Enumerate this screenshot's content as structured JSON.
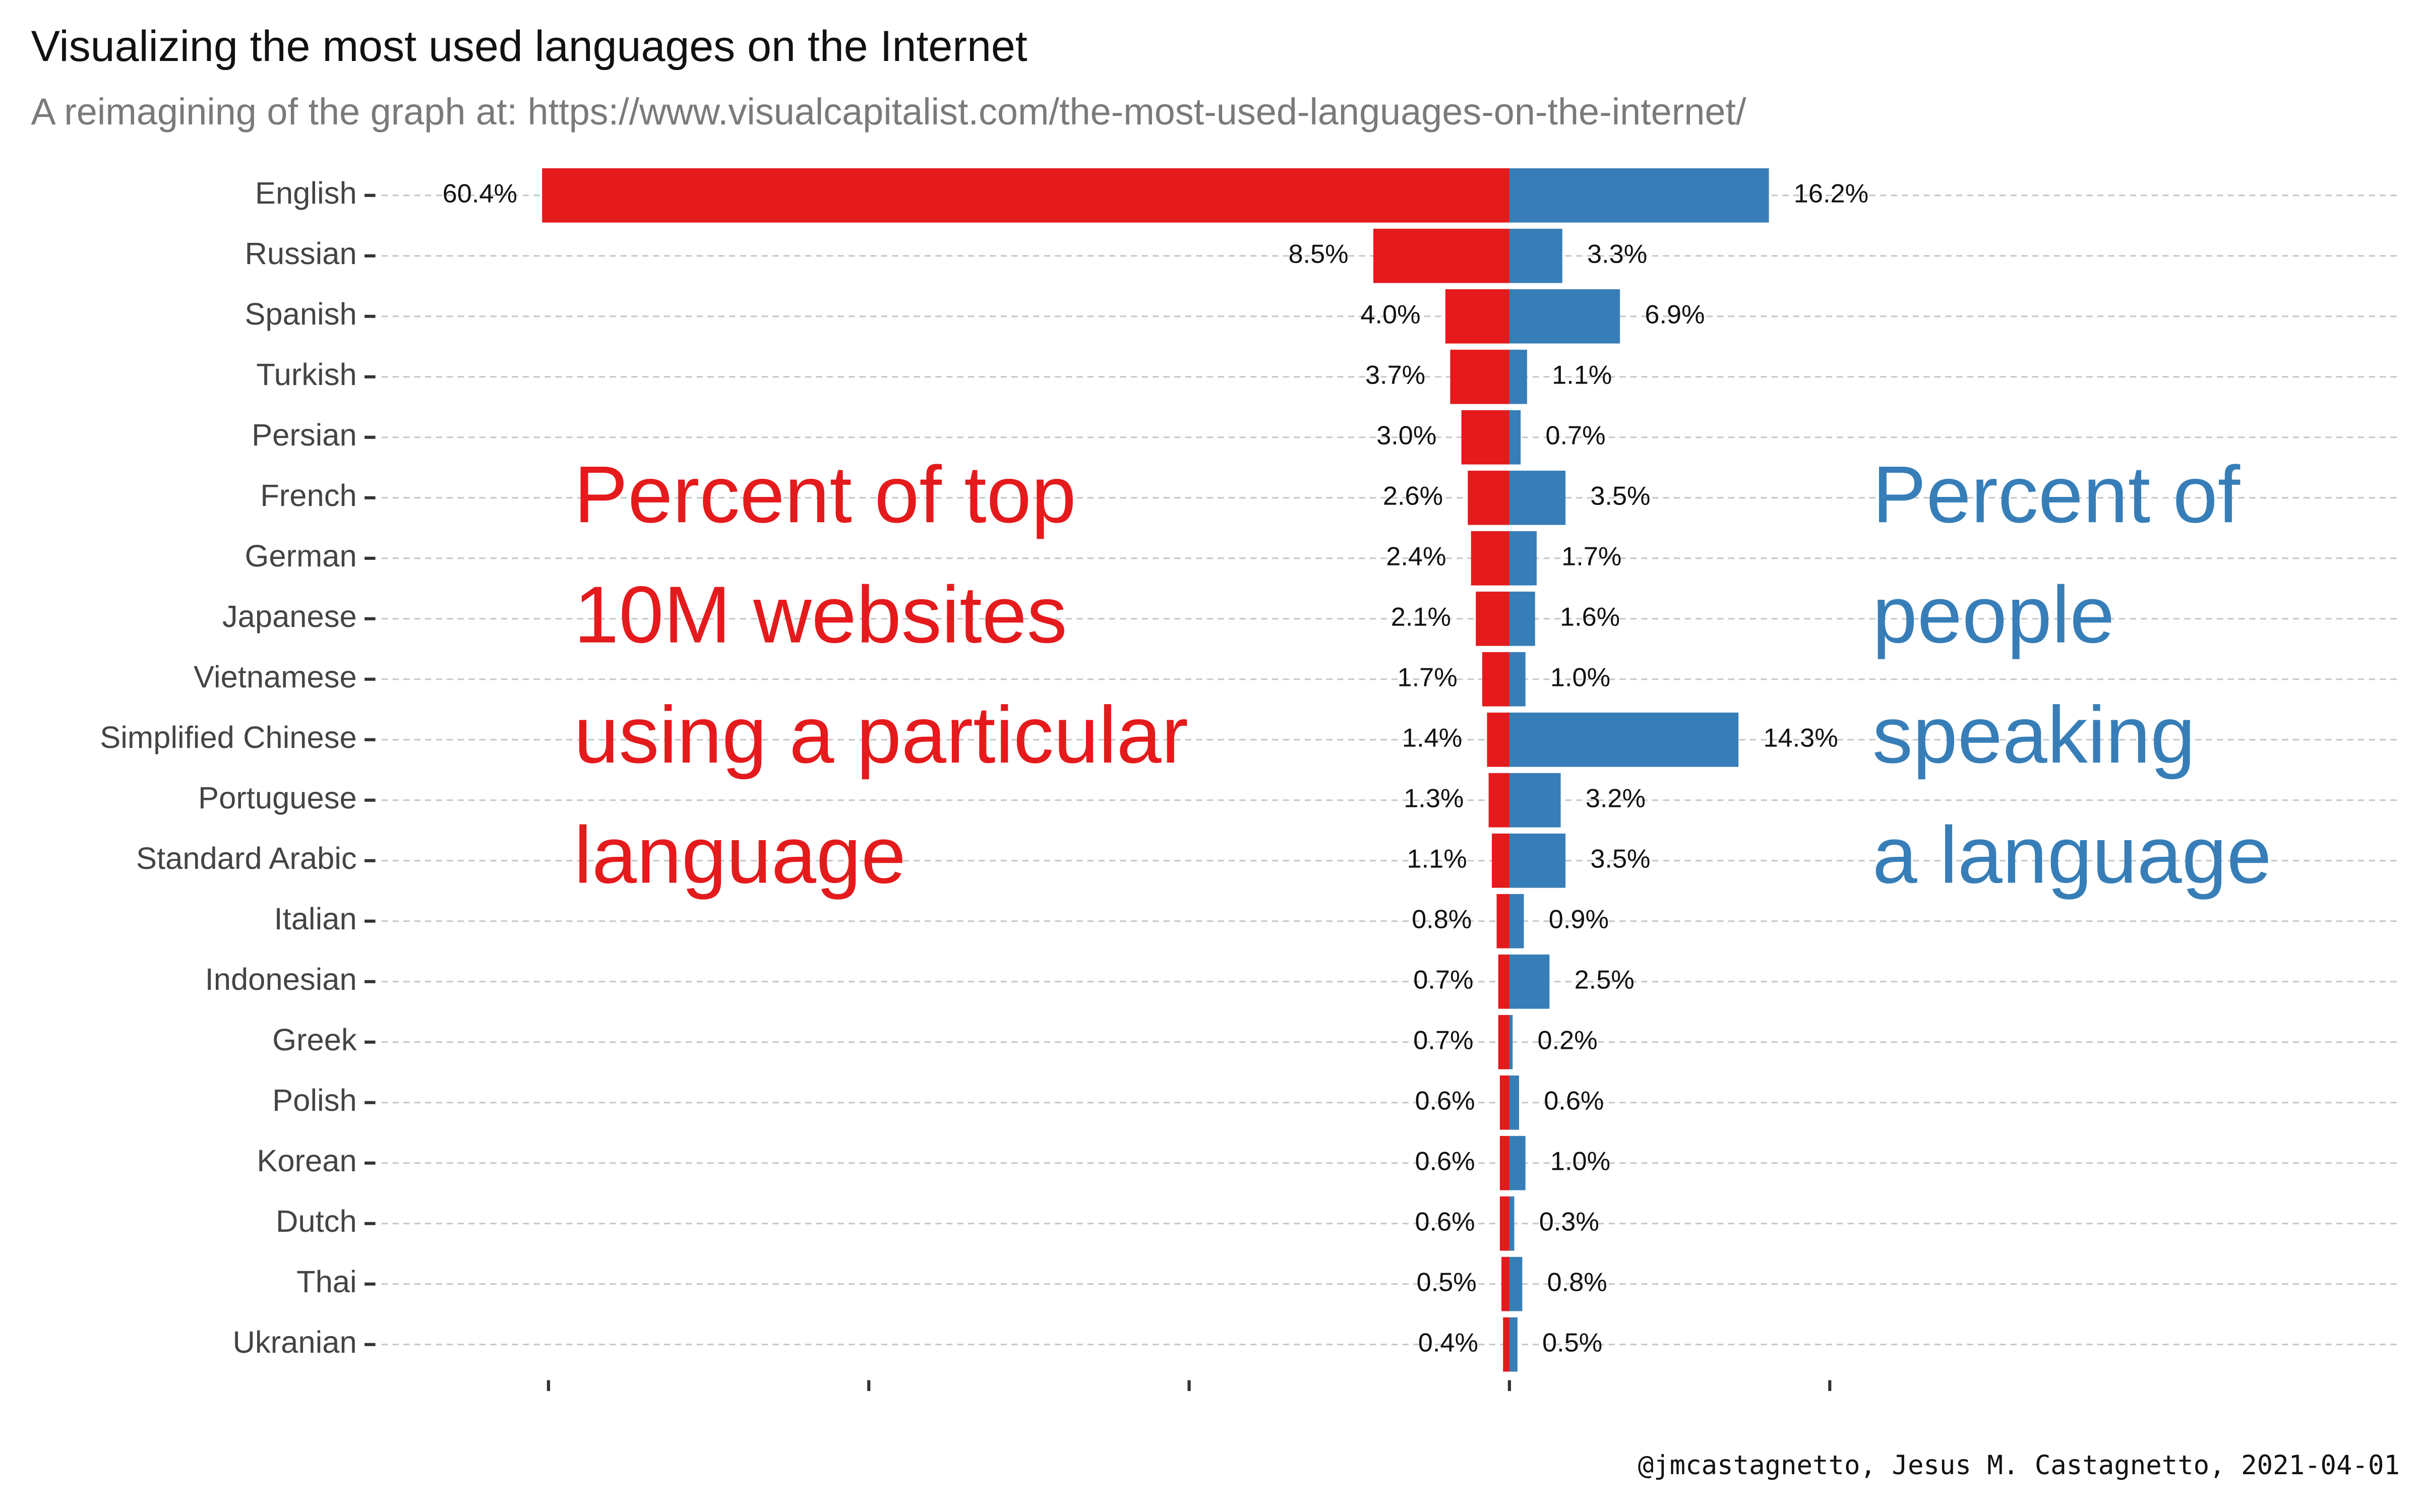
{
  "chart_data": {
    "type": "diverging-bar",
    "title": "Visualizing the most used languages on the Internet",
    "subtitle": "A reimagining of the graph at: https://www.visualcapitalist.com/the-most-used-languages-on-the-internet/",
    "caption": "@jmcastagnetto, Jesus M. Castagnetto, 2021-04-01",
    "categories": [
      "English",
      "Russian",
      "Spanish",
      "Turkish",
      "Persian",
      "French",
      "German",
      "Japanese",
      "Vietnamese",
      "Simplified Chinese",
      "Portuguese",
      "Standard Arabic",
      "Italian",
      "Indonesian",
      "Greek",
      "Polish",
      "Korean",
      "Dutch",
      "Thai",
      "Ukranian"
    ],
    "series": [
      {
        "color": "#e41a1c",
        "values": [
          60.4,
          8.5,
          4.0,
          3.7,
          3.0,
          2.6,
          2.4,
          2.1,
          1.7,
          1.4,
          1.3,
          1.1,
          0.8,
          0.7,
          0.7,
          0.6,
          0.6,
          0.6,
          0.5,
          0.4
        ],
        "value_labels": [
          "60.4%",
          "8.5%",
          "4.0%",
          "3.7%",
          "3.0%",
          "2.6%",
          "2.4%",
          "2.1%",
          "1.7%",
          "1.4%",
          "1.3%",
          "1.1%",
          "0.8%",
          "0.7%",
          "0.7%",
          "0.6%",
          "0.6%",
          "0.6%",
          "0.5%",
          "0.4%"
        ]
      },
      {
        "color": "#377eb8",
        "values": [
          16.2,
          3.3,
          6.9,
          1.1,
          0.7,
          3.5,
          1.7,
          1.6,
          1.0,
          14.3,
          3.2,
          3.5,
          0.9,
          2.5,
          0.2,
          0.6,
          1.0,
          0.3,
          0.8,
          0.5
        ],
        "value_labels": [
          "16.2%",
          "3.3%",
          "6.9%",
          "1.1%",
          "0.7%",
          "3.5%",
          "1.7%",
          "1.6%",
          "1.0%",
          "14.3%",
          "3.2%",
          "3.5%",
          "0.9%",
          "2.5%",
          "0.2%",
          "0.6%",
          "1.0%",
          "0.3%",
          "0.8%",
          "0.5%"
        ]
      }
    ],
    "annotations": [
      {
        "color": "#e41a1c",
        "lines": [
          "Percent of top",
          "10M websites",
          "using a particular",
          "language"
        ]
      },
      {
        "color": "#377eb8",
        "lines": [
          "Percent of",
          "people",
          "speaking",
          "a language"
        ]
      }
    ],
    "xlim": [
      -71,
      55.4
    ],
    "xticks": [
      -60,
      -40,
      -20,
      0,
      20
    ],
    "grid": true
  }
}
